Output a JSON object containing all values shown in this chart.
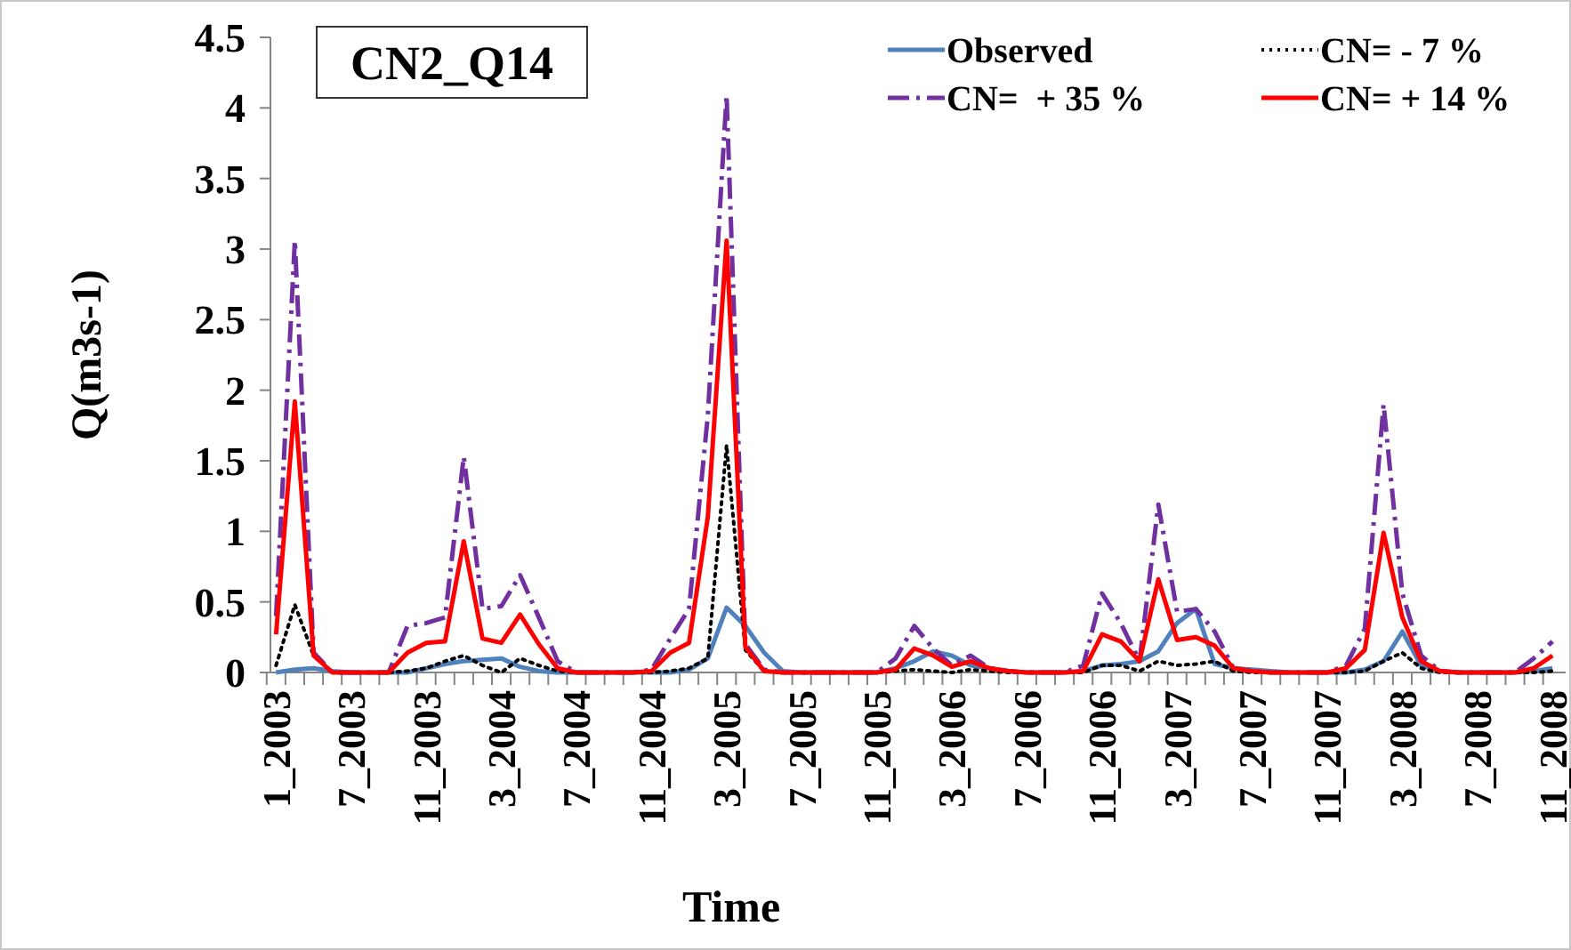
{
  "chart_data": {
    "type": "line",
    "title": "CN2_Q14",
    "xlabel": "Time",
    "ylabel": "Q(m3s-1)",
    "categories": [
      "1_2003",
      null,
      null,
      null,
      "7_2003",
      null,
      null,
      null,
      "11_2003",
      null,
      null,
      null,
      "3_2004",
      null,
      null,
      null,
      "7_2004",
      null,
      null,
      null,
      "11_2004",
      null,
      null,
      null,
      "3_2005",
      null,
      null,
      null,
      "7_2005",
      null,
      null,
      null,
      "11_2005",
      null,
      null,
      null,
      "3_2006",
      null,
      null,
      null,
      "7_2006",
      null,
      null,
      null,
      "11_2006",
      null,
      null,
      null,
      "3_2007",
      null,
      null,
      null,
      "7_2007",
      null,
      null,
      null,
      "11_2007",
      null,
      null,
      null,
      "3_2008",
      null,
      null,
      null,
      "7_2008",
      null,
      null,
      null,
      "11_2008"
    ],
    "ylim": [
      0,
      4.5
    ],
    "yticks": [
      0,
      0.5,
      1,
      1.5,
      2,
      2.5,
      3,
      3.5,
      4,
      4.5
    ],
    "grid": false,
    "legend": "top right",
    "marker": "none",
    "series": [
      {
        "name": "Observed",
        "color": "#4f81bd",
        "line_style": "solid",
        "values": [
          0,
          0.02,
          0.03,
          0.01,
          0,
          0,
          0,
          0,
          0.03,
          0.06,
          0.08,
          0.09,
          0.1,
          0.04,
          0.01,
          0,
          0,
          0,
          0,
          0,
          0,
          0,
          0.02,
          0.1,
          0.46,
          0.33,
          0.14,
          0.01,
          0,
          0,
          0,
          0,
          0,
          0.03,
          0.08,
          0.15,
          0.12,
          0.05,
          0.03,
          0.01,
          0,
          0,
          0,
          0.01,
          0.05,
          0.06,
          0.08,
          0.15,
          0.35,
          0.45,
          0.06,
          0.03,
          0.02,
          0.01,
          0,
          0,
          0,
          0,
          0.02,
          0.08,
          0.29,
          0.05,
          0.01,
          0,
          0,
          0,
          0,
          0.01,
          0.03
        ]
      },
      {
        "name": "CN= - 7 %",
        "color": "#000000",
        "line_style": "dotted",
        "values": [
          0.05,
          0.48,
          0.12,
          0,
          0,
          0,
          0,
          0.01,
          0.03,
          0.08,
          0.12,
          0.05,
          0,
          0.1,
          0.05,
          0.01,
          0,
          0,
          0,
          0,
          0,
          0.01,
          0.03,
          0.1,
          1.61,
          0.16,
          0.01,
          0,
          0,
          0,
          0,
          0,
          0,
          0.01,
          0.02,
          0.01,
          0,
          0.02,
          0.01,
          0,
          0,
          0,
          0,
          0,
          0.05,
          0.05,
          0.01,
          0.08,
          0.05,
          0.06,
          0.08,
          0.01,
          0,
          0,
          0,
          0,
          0,
          0,
          0.01,
          0.08,
          0.14,
          0.03,
          0,
          0,
          0,
          0,
          0,
          0,
          0.01
        ]
      },
      {
        "name": "CN=  + 35 %",
        "color": "#7030a0",
        "line_style": "dashed",
        "values": [
          0.4,
          3.06,
          0.14,
          0,
          0,
          0,
          0,
          0.33,
          0.35,
          0.39,
          1.53,
          0.45,
          0.47,
          0.69,
          0.39,
          0.08,
          0,
          0,
          0,
          0,
          0.02,
          0.24,
          0.45,
          1.82,
          4.09,
          0.2,
          0.02,
          0,
          0,
          0,
          0,
          0,
          0,
          0.1,
          0.33,
          0.17,
          0.05,
          0.12,
          0.03,
          0.01,
          0,
          0,
          0,
          0.05,
          0.56,
          0.35,
          0.08,
          1.19,
          0.43,
          0.45,
          0.29,
          0.03,
          0.01,
          0,
          0,
          0,
          0,
          0.05,
          0.31,
          1.9,
          0.56,
          0.12,
          0.01,
          0,
          0,
          0,
          0,
          0.1,
          0.22
        ]
      },
      {
        "name": "CN= + 14 %",
        "color": "#ff0000",
        "line_style": "solid",
        "values": [
          0.27,
          1.92,
          0.12,
          0,
          0,
          0,
          0,
          0.14,
          0.21,
          0.22,
          0.93,
          0.24,
          0.21,
          0.41,
          0.2,
          0.03,
          0,
          0,
          0,
          0,
          0.01,
          0.14,
          0.21,
          1.1,
          3.06,
          0.18,
          0.01,
          0,
          0,
          0,
          0,
          0,
          0,
          0.02,
          0.17,
          0.12,
          0.04,
          0.08,
          0.03,
          0.01,
          0,
          0,
          0,
          0.01,
          0.27,
          0.22,
          0.08,
          0.66,
          0.23,
          0.25,
          0.19,
          0.03,
          0.01,
          0,
          0,
          0,
          0,
          0.03,
          0.16,
          0.99,
          0.39,
          0.08,
          0.01,
          0,
          0,
          0,
          0,
          0.03,
          0.12
        ]
      }
    ]
  }
}
